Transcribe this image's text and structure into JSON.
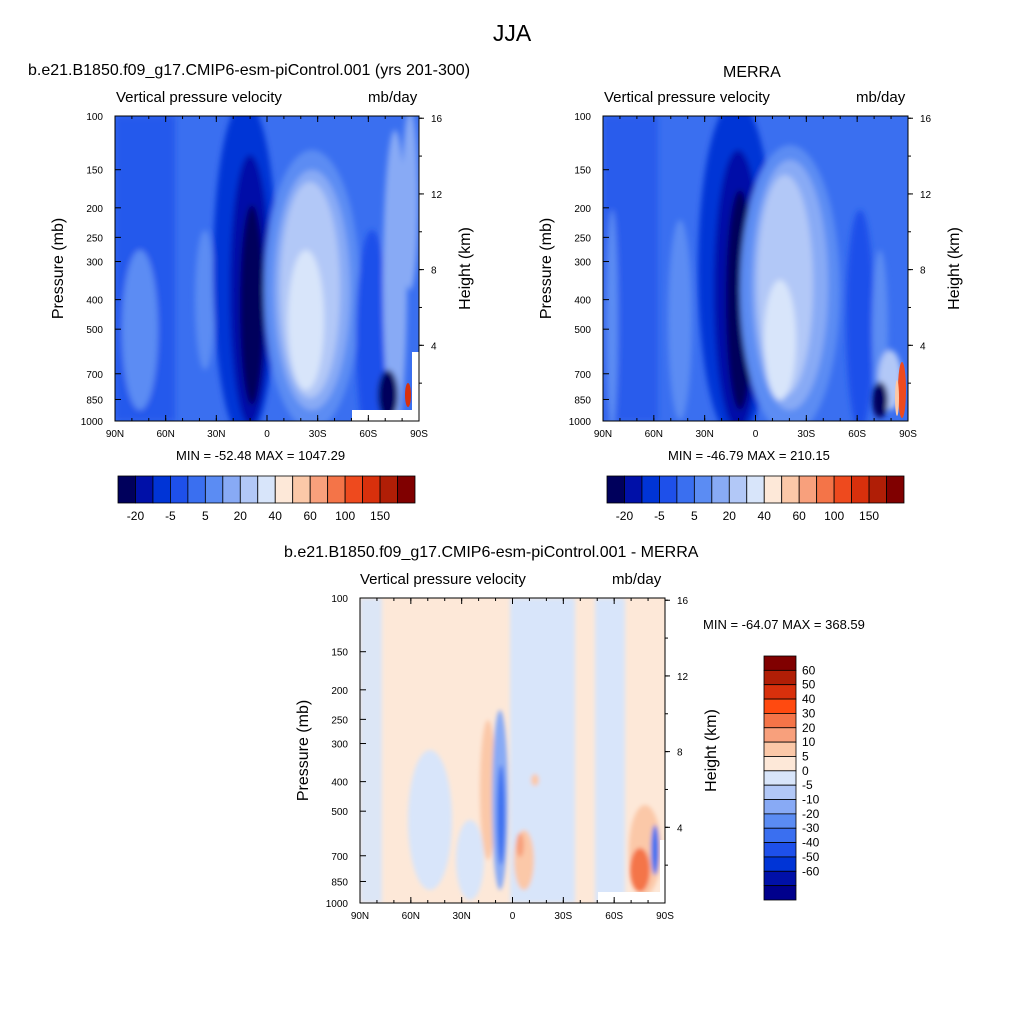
{
  "title": "JJA",
  "colors": {
    "ramp": [
      "#00005c",
      "#0010a8",
      "#0034d6",
      "#1e50ea",
      "#3a6ff0",
      "#5b8cf3",
      "#88aaf5",
      "#b2c8f7",
      "#d8e5fa",
      "#fde8d8",
      "#fbc8a8",
      "#f8a07c",
      "#f47448",
      "#ee4a1e",
      "#d8300c",
      "#b01e06",
      "#800000"
    ]
  },
  "chart_data": [
    {
      "type": "heatmap",
      "title": "b.e21.B1850.f09_g17.CMIP6-esm-piControl.001 (yrs 201-300)",
      "left_label": "Vertical pressure velocity",
      "units": "mb/day",
      "ylabel": "Pressure (mb)",
      "y2label": "Height (km)",
      "xticks": [
        "90N",
        "60N",
        "30N",
        "0",
        "30S",
        "60S",
        "90S"
      ],
      "yticks": [
        "100",
        "150",
        "200",
        "250",
        "300",
        "400",
        "500",
        "700",
        "850",
        "1000"
      ],
      "y2ticks": [
        "16",
        "12",
        "8",
        "4"
      ],
      "stats": "MIN = -52.48  MAX = 1047.29",
      "colorbar_labels": [
        "-20",
        "-5",
        "5",
        "20",
        "40",
        "60",
        "100",
        "150"
      ],
      "min": -52.48,
      "max": 1047.29
    },
    {
      "type": "heatmap",
      "title": "MERRA",
      "left_label": "Vertical pressure velocity",
      "units": "mb/day",
      "ylabel": "Pressure (mb)",
      "y2label": "Height (km)",
      "xticks": [
        "90N",
        "60N",
        "30N",
        "0",
        "30S",
        "60S",
        "90S"
      ],
      "yticks": [
        "100",
        "150",
        "200",
        "250",
        "300",
        "400",
        "500",
        "700",
        "850",
        "1000"
      ],
      "y2ticks": [
        "16",
        "12",
        "8",
        "4"
      ],
      "stats": "MIN = -46.79  MAX = 210.15",
      "colorbar_labels": [
        "-20",
        "-5",
        "5",
        "20",
        "40",
        "60",
        "100",
        "150"
      ],
      "min": -46.79,
      "max": 210.15
    },
    {
      "type": "heatmap",
      "title": "b.e21.B1850.f09_g17.CMIP6-esm-piControl.001 - MERRA",
      "left_label": "Vertical pressure velocity",
      "units": "mb/day",
      "ylabel": "Pressure (mb)",
      "y2label": "Height (km)",
      "xticks": [
        "90N",
        "60N",
        "30N",
        "0",
        "30S",
        "60S",
        "90S"
      ],
      "yticks": [
        "100",
        "150",
        "200",
        "250",
        "300",
        "400",
        "500",
        "700",
        "850",
        "1000"
      ],
      "y2ticks": [
        "16",
        "12",
        "8",
        "4"
      ],
      "stats": "MIN = -64.07  MAX = 368.59",
      "colorbar_labels": [
        "60",
        "50",
        "40",
        "30",
        "20",
        "10",
        "5",
        "0",
        "-5",
        "-10",
        "-20",
        "-30",
        "-40",
        "-50",
        "-60"
      ],
      "min": -64.07,
      "max": 368.59
    }
  ]
}
